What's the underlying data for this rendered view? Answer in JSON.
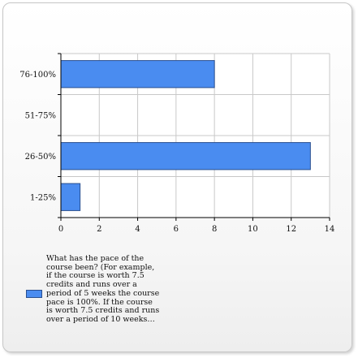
{
  "chart_data": {
    "type": "bar",
    "orientation": "horizontal",
    "categories": [
      "76-100%",
      "51-75%",
      "26-50%",
      "1-25%"
    ],
    "series": [
      {
        "name": "What has the pace of the course been? (For example, if the course is worth 7.5 credits and runs over a period of 5 weeks the course pace is 100%. If the course is worth 7.5 credits and runs over a period of 10 weeks…",
        "values": [
          8,
          0,
          13,
          1
        ]
      }
    ],
    "xlim": [
      0,
      14
    ],
    "xticks": [
      0,
      2,
      4,
      6,
      8,
      10,
      12,
      14
    ],
    "grid": true,
    "legend_position": "bottom-left",
    "colors": {
      "bar": "#4a8cf0",
      "bar_border": "#2a4f8f",
      "grid": "#c8c8c8",
      "axis": "#000000",
      "plot_bg": "#ffffff"
    }
  },
  "legend": {
    "text": "What has the pace of the course been? (For example, if the course is worth 7.5 credits and runs over a period of 5 weeks the course pace is 100%. If the course is worth 7.5 credits and runs over a period of 10 weeks…"
  }
}
